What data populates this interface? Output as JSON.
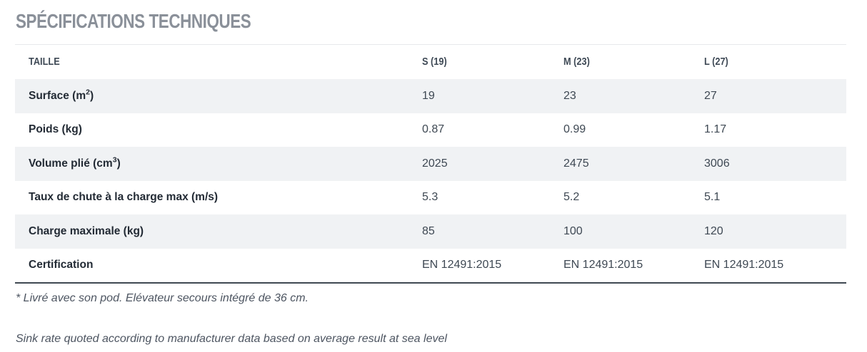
{
  "section": {
    "title": "SPÉCIFICATIONS TECHNIQUES"
  },
  "table": {
    "header": {
      "label": "TAILLE",
      "columns": [
        "S (19)",
        "M (23)",
        "L (27)"
      ]
    },
    "rows": [
      {
        "label": "Surface (m",
        "sup": "2",
        "label_end": ")",
        "values": [
          "19",
          "23",
          "27"
        ]
      },
      {
        "label": "Poids (kg)",
        "sup": "",
        "label_end": "",
        "values": [
          "0.87",
          "0.99",
          "1.17"
        ]
      },
      {
        "label": "Volume plié (cm",
        "sup": "3",
        "label_end": ")",
        "values": [
          "2025",
          "2475",
          "3006"
        ]
      },
      {
        "label": "Taux de chute à la charge max (m/s)",
        "sup": "",
        "label_end": "",
        "values": [
          "5.3",
          "5.2",
          "5.1"
        ]
      },
      {
        "label": "Charge maximale (kg)",
        "sup": "",
        "label_end": "",
        "values": [
          "85",
          "100",
          "120"
        ]
      },
      {
        "label": "Certification",
        "sup": "",
        "label_end": "",
        "values": [
          "EN 12491:2015",
          "EN 12491:2015",
          "EN 12491:2015"
        ]
      }
    ]
  },
  "notes": {
    "note1": "* Livré avec son pod. Elévateur secours intégré de 36 cm.",
    "note2": "Sink rate quoted according to manufacturer data based on average result at sea level"
  },
  "colors": {
    "title_gray": "#8a9099",
    "header_text": "#3f4a56",
    "label_text": "#232b35",
    "value_text": "#3e4853",
    "shaded_row_bg": "#f0f2f4",
    "top_divider": "#e7e9eb",
    "bottom_border": "#3f4852",
    "note_text": "#4d5561"
  }
}
